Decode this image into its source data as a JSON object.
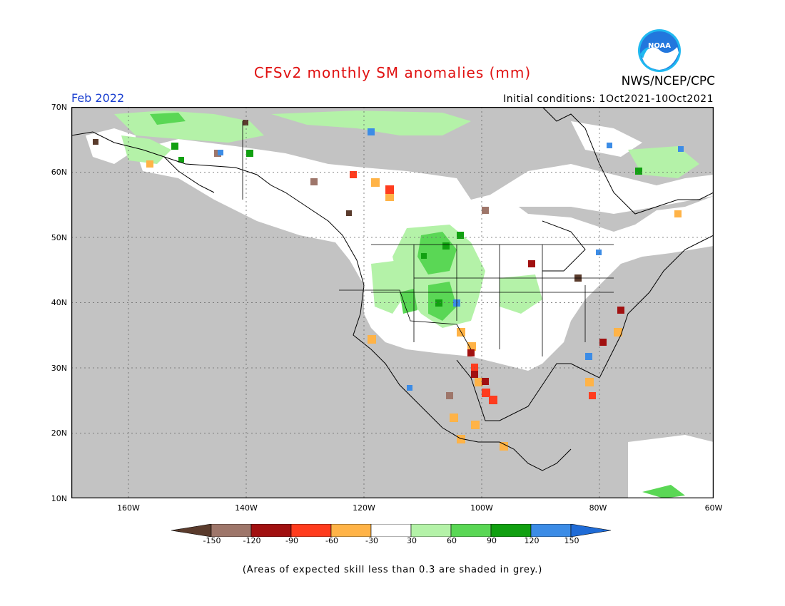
{
  "title": "CFSv2 monthly SM anomalies (mm)",
  "valid_month": "Feb 2022",
  "initial_conditions": "Initial conditions: 1Oct2021-10Oct2021",
  "organization": "NWS/NCEP/CPC",
  "logo_text": "NOAA",
  "footer_note": "(Areas of expected skill less than 0.3 are shaded in grey.)",
  "lat_labels": [
    "70N",
    "60N",
    "50N",
    "40N",
    "30N",
    "20N",
    "10N"
  ],
  "lon_labels": [
    "160W",
    "140W",
    "120W",
    "100W",
    "80W",
    "60W"
  ],
  "colorbar": {
    "labels": [
      "-150",
      "-120",
      "-90",
      "-60",
      "-30",
      "30",
      "60",
      "90",
      "120",
      "150"
    ],
    "colors": [
      "#5a3b2c",
      "#9e766a",
      "#a11010",
      "#ff3c1e",
      "#ffb347",
      "#ffffff",
      "#b4f2a8",
      "#5ad755",
      "#11a011",
      "#3c8ce6",
      "#1f6bd6"
    ]
  },
  "colors": {
    "skill_grey": "#c3c3c3",
    "title_red": "#e01010",
    "month_blue": "#1a3fd0"
  }
}
